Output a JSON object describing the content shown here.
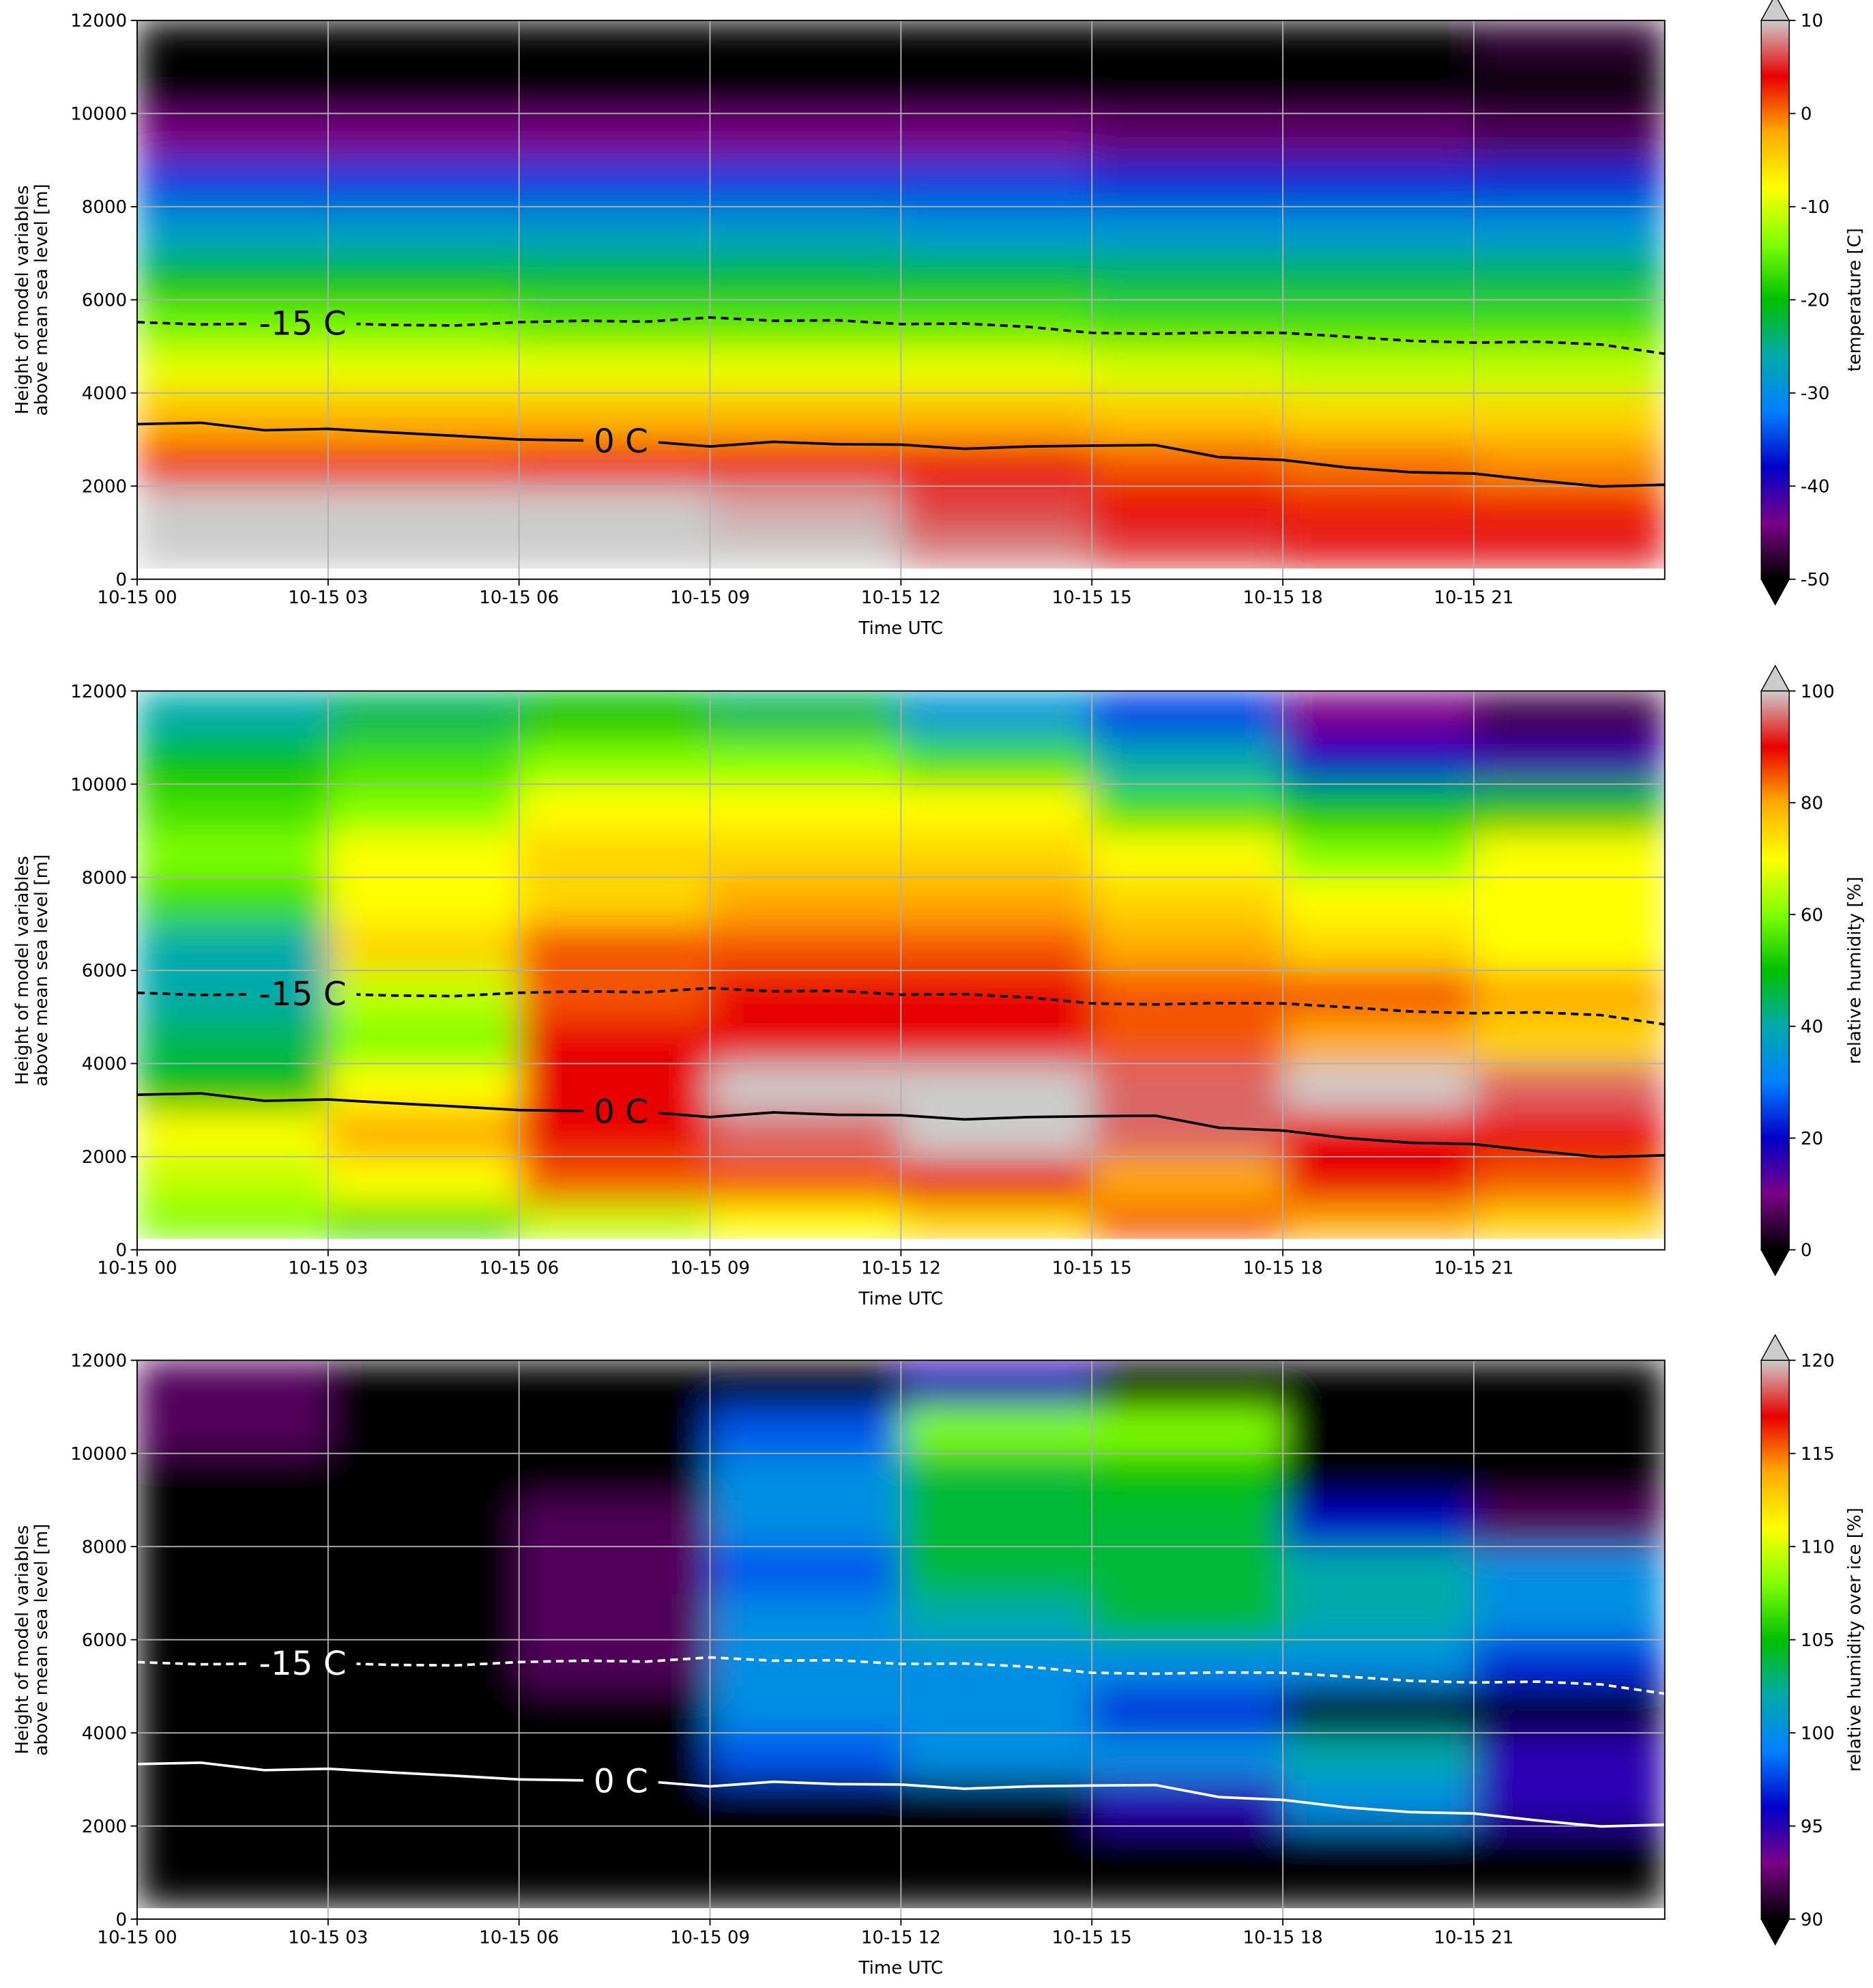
{
  "chart_data": [
    {
      "type": "heatmap",
      "xlabel": "Time UTC",
      "ylabel": [
        "Height of model variables",
        "above mean sea level [m]"
      ],
      "zlabel": "temperature [C]",
      "xlim": [
        0,
        24
      ],
      "xticks": [
        {
          "value": 0,
          "label": "10-15 00"
        },
        {
          "value": 3,
          "label": "10-15 03"
        },
        {
          "value": 6,
          "label": "10-15 06"
        },
        {
          "value": 9,
          "label": "10-15 09"
        },
        {
          "value": 12,
          "label": "10-15 12"
        },
        {
          "value": 15,
          "label": "10-15 15"
        },
        {
          "value": 18,
          "label": "10-15 18"
        },
        {
          "value": 21,
          "label": "10-15 21"
        }
      ],
      "ylim": [
        0,
        12000
      ],
      "yticks": [
        0,
        2000,
        4000,
        6000,
        8000,
        10000,
        12000
      ],
      "grid": true,
      "zlim": [
        -50,
        10
      ],
      "zticks": [
        -50,
        -40,
        -30,
        -20,
        -10,
        0,
        10
      ],
      "colormap": [
        "#000000",
        "#7a0087",
        "#0000c8",
        "#0080ff",
        "#00aaaa",
        "#00c000",
        "#7fff00",
        "#ffff00",
        "#ffaa00",
        "#e80000",
        "#cccccc"
      ],
      "x_bins": [
        0,
        3,
        6,
        9,
        12,
        15,
        18,
        21,
        24
      ],
      "y_bins": [
        250,
        1000,
        2000,
        3000,
        4000,
        5000,
        6000,
        7000,
        8000,
        9000,
        10000,
        11000,
        12000
      ],
      "z": [
        [
          11,
          11,
          11,
          11,
          8,
          6,
          5,
          5
        ],
        [
          10,
          10,
          10,
          9,
          6,
          4,
          3,
          3
        ],
        [
          2,
          2,
          3,
          3,
          3,
          1,
          0,
          -1
        ],
        [
          -3,
          -3,
          -3,
          -3,
          -3,
          -4,
          -5,
          -5
        ],
        [
          -9,
          -9,
          -9,
          -9,
          -9,
          -10,
          -11,
          -11
        ],
        [
          -15,
          -15,
          -16,
          -16,
          -16,
          -17,
          -17,
          -17
        ],
        [
          -21,
          -21,
          -22,
          -22,
          -22,
          -23,
          -23,
          -23
        ],
        [
          -28,
          -28,
          -28,
          -28,
          -29,
          -29,
          -29,
          -29
        ],
        [
          -35,
          -35,
          -35,
          -35,
          -35,
          -36,
          -36,
          -36
        ],
        [
          -44,
          -44,
          -44,
          -44,
          -44,
          -45,
          -45,
          -46
        ],
        [
          -52,
          -52,
          -52,
          -52,
          -52,
          -52,
          -52,
          -50
        ],
        [
          -52,
          -52,
          -52,
          -52,
          -52,
          -52,
          -52,
          -48
        ]
      ],
      "x": [
        0,
        1,
        2,
        3,
        4,
        5,
        6,
        7,
        8,
        9,
        10,
        11,
        12,
        13,
        14,
        15,
        16,
        17,
        18,
        19,
        20,
        21,
        22,
        23,
        24
      ],
      "series": [
        {
          "name": "-15 C",
          "color": "#000000",
          "dashed": true,
          "values": [
            5520,
            5470,
            5490,
            5500,
            5460,
            5450,
            5520,
            5550,
            5530,
            5620,
            5550,
            5560,
            5480,
            5490,
            5420,
            5290,
            5270,
            5300,
            5290,
            5210,
            5120,
            5080,
            5100,
            5040,
            4840
          ]
        },
        {
          "name": "0 C",
          "color": "#000000",
          "dashed": false,
          "values": [
            3330,
            3360,
            3200,
            3230,
            3150,
            3080,
            3000,
            2980,
            2960,
            2850,
            2950,
            2900,
            2890,
            2800,
            2850,
            2870,
            2880,
            2620,
            2560,
            2400,
            2300,
            2270,
            2120,
            1990,
            2030
          ]
        }
      ]
    },
    {
      "type": "heatmap",
      "xlabel": "Time UTC",
      "ylabel": [
        "Height of model variables",
        "above mean sea level [m]"
      ],
      "zlabel": "relative humidity [%]",
      "xlim": [
        0,
        24
      ],
      "xticks": [
        {
          "value": 0,
          "label": "10-15 00"
        },
        {
          "value": 3,
          "label": "10-15 03"
        },
        {
          "value": 6,
          "label": "10-15 06"
        },
        {
          "value": 9,
          "label": "10-15 09"
        },
        {
          "value": 12,
          "label": "10-15 12"
        },
        {
          "value": 15,
          "label": "10-15 15"
        },
        {
          "value": 18,
          "label": "10-15 18"
        },
        {
          "value": 21,
          "label": "10-15 21"
        }
      ],
      "ylim": [
        0,
        12000
      ],
      "yticks": [
        0,
        2000,
        4000,
        6000,
        8000,
        10000,
        12000
      ],
      "grid": true,
      "zlim": [
        0,
        100
      ],
      "zticks": [
        0,
        20,
        40,
        60,
        80,
        100
      ],
      "colormap": [
        "#000000",
        "#7a0087",
        "#0000c8",
        "#0080ff",
        "#00aaaa",
        "#00c000",
        "#7fff00",
        "#ffff00",
        "#ffaa00",
        "#e80000",
        "#cccccc"
      ],
      "x_bins": [
        0,
        3,
        6,
        9,
        12,
        15,
        18,
        21,
        24
      ],
      "y_bins": [
        250,
        1000,
        2000,
        3000,
        4000,
        5000,
        6000,
        7000,
        8000,
        9000,
        10000,
        11000,
        12000
      ],
      "z": [
        [
          60,
          55,
          65,
          70,
          75,
          85,
          80,
          75
        ],
        [
          65,
          70,
          85,
          85,
          90,
          80,
          90,
          85
        ],
        [
          70,
          80,
          90,
          95,
          100,
          95,
          90,
          90
        ],
        [
          50,
          70,
          90,
          100,
          100,
          95,
          100,
          95
        ],
        [
          45,
          60,
          90,
          90,
          90,
          85,
          80,
          75
        ],
        [
          40,
          65,
          85,
          90,
          90,
          85,
          85,
          80
        ],
        [
          40,
          75,
          85,
          85,
          85,
          80,
          75,
          70
        ],
        [
          55,
          70,
          75,
          80,
          80,
          75,
          70,
          70
        ],
        [
          60,
          70,
          75,
          75,
          75,
          70,
          60,
          70
        ],
        [
          55,
          60,
          70,
          70,
          70,
          55,
          50,
          50
        ],
        [
          50,
          55,
          60,
          60,
          55,
          40,
          20,
          15
        ],
        [
          40,
          45,
          50,
          45,
          35,
          25,
          10,
          5
        ]
      ],
      "x": [
        0,
        1,
        2,
        3,
        4,
        5,
        6,
        7,
        8,
        9,
        10,
        11,
        12,
        13,
        14,
        15,
        16,
        17,
        18,
        19,
        20,
        21,
        22,
        23,
        24
      ],
      "series": [
        {
          "name": "-15 C",
          "color": "#000000",
          "dashed": true,
          "values": [
            5520,
            5470,
            5490,
            5500,
            5460,
            5450,
            5520,
            5550,
            5530,
            5620,
            5550,
            5560,
            5480,
            5490,
            5420,
            5290,
            5270,
            5300,
            5290,
            5210,
            5120,
            5080,
            5100,
            5040,
            4840
          ]
        },
        {
          "name": "0 C",
          "color": "#000000",
          "dashed": false,
          "values": [
            3330,
            3360,
            3200,
            3230,
            3150,
            3080,
            3000,
            2980,
            2960,
            2850,
            2950,
            2900,
            2890,
            2800,
            2850,
            2870,
            2880,
            2620,
            2560,
            2400,
            2300,
            2270,
            2120,
            1990,
            2030
          ]
        }
      ]
    },
    {
      "type": "heatmap",
      "xlabel": "Time UTC",
      "ylabel": [
        "Height of model variables",
        "above mean sea level [m]"
      ],
      "zlabel": "relative humidity over ice [%]",
      "xlim": [
        0,
        24
      ],
      "xticks": [
        {
          "value": 0,
          "label": "10-15 00"
        },
        {
          "value": 3,
          "label": "10-15 03"
        },
        {
          "value": 6,
          "label": "10-15 06"
        },
        {
          "value": 9,
          "label": "10-15 09"
        },
        {
          "value": 12,
          "label": "10-15 12"
        },
        {
          "value": 15,
          "label": "10-15 15"
        },
        {
          "value": 18,
          "label": "10-15 18"
        },
        {
          "value": 21,
          "label": "10-15 21"
        }
      ],
      "ylim": [
        0,
        12000
      ],
      "yticks": [
        0,
        2000,
        4000,
        6000,
        8000,
        10000,
        12000
      ],
      "grid": true,
      "zlim": [
        90,
        120
      ],
      "zticks": [
        90,
        95,
        100,
        105,
        110,
        115,
        120
      ],
      "colormap": [
        "#000000",
        "#7a0087",
        "#0000c8",
        "#0080ff",
        "#00aaaa",
        "#00c000",
        "#7fff00",
        "#ffff00",
        "#ffaa00",
        "#e80000",
        "#cccccc"
      ],
      "x_bins": [
        0,
        3,
        6,
        9,
        12,
        15,
        18,
        21,
        24
      ],
      "y_bins": [
        250,
        1000,
        2000,
        3000,
        4000,
        5000,
        6000,
        7000,
        8000,
        9000,
        10000,
        11000,
        12000
      ],
      "z": [
        [
          80,
          80,
          80,
          80,
          80,
          80,
          80,
          80
        ],
        [
          80,
          80,
          80,
          85,
          88,
          80,
          80,
          80
        ],
        [
          80,
          80,
          80,
          85,
          90,
          95,
          100,
          95
        ],
        [
          80,
          80,
          80,
          98,
          100,
          100,
          102,
          95
        ],
        [
          80,
          80,
          85,
          100,
          100,
          97,
          85,
          80
        ],
        [
          80,
          80,
          92,
          100,
          100,
          100,
          100,
          97
        ],
        [
          80,
          80,
          92,
          100,
          102,
          104,
          102,
          100
        ],
        [
          80,
          80,
          92,
          98,
          104,
          104,
          102,
          100
        ],
        [
          80,
          88,
          92,
          100,
          104,
          104,
          96,
          92
        ],
        [
          80,
          80,
          85,
          100,
          104,
          105,
          90,
          80
        ],
        [
          92,
          80,
          85,
          98,
          108,
          108,
          80,
          80
        ],
        [
          92,
          80,
          80,
          90,
          95,
          80,
          80,
          80
        ]
      ],
      "x": [
        0,
        1,
        2,
        3,
        4,
        5,
        6,
        7,
        8,
        9,
        10,
        11,
        12,
        13,
        14,
        15,
        16,
        17,
        18,
        19,
        20,
        21,
        22,
        23,
        24
      ],
      "series": [
        {
          "name": "-15 C",
          "color": "#ffffff",
          "dashed": true,
          "values": [
            5520,
            5470,
            5490,
            5500,
            5460,
            5450,
            5520,
            5550,
            5530,
            5620,
            5550,
            5560,
            5480,
            5490,
            5420,
            5290,
            5270,
            5300,
            5290,
            5210,
            5120,
            5080,
            5100,
            5040,
            4840
          ]
        },
        {
          "name": "0 C",
          "color": "#ffffff",
          "dashed": false,
          "values": [
            3330,
            3360,
            3200,
            3230,
            3150,
            3080,
            3000,
            2980,
            2960,
            2850,
            2950,
            2900,
            2890,
            2800,
            2850,
            2870,
            2880,
            2620,
            2560,
            2400,
            2300,
            2270,
            2120,
            1990,
            2030
          ]
        }
      ]
    }
  ]
}
